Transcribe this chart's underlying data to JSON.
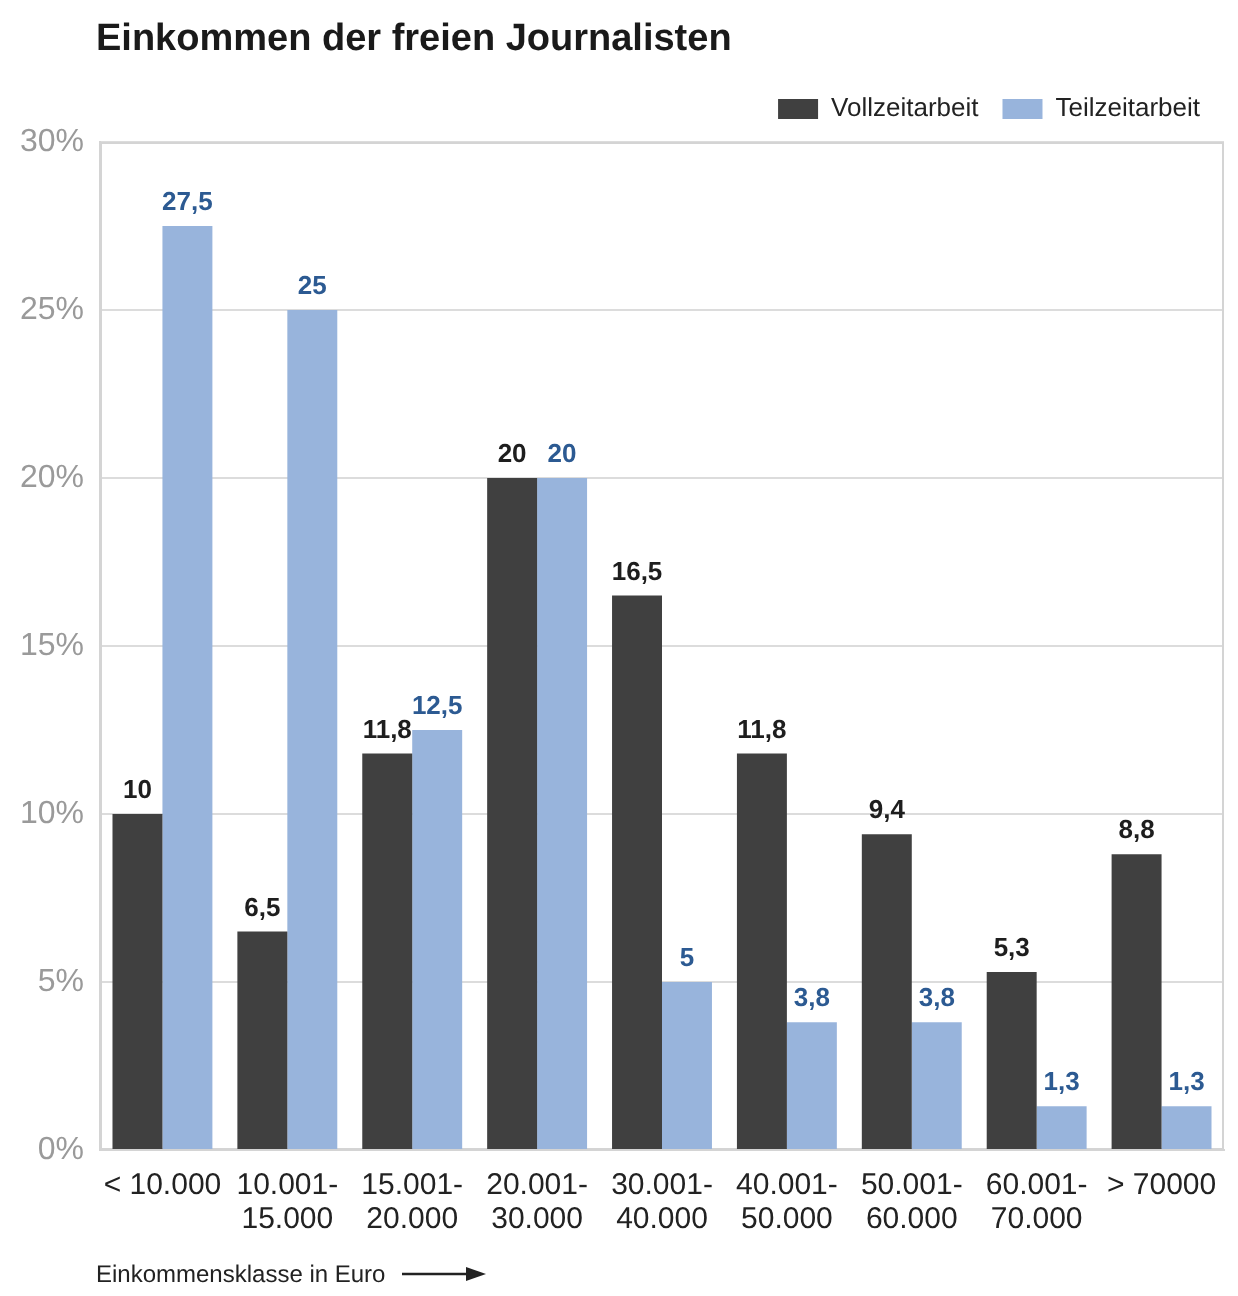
{
  "chart_data": {
    "type": "bar",
    "title": "Einkommen der freien Journalisten",
    "xlabel": "Einkommensklasse in Euro",
    "categories": [
      "< 10.000",
      "10.001-\n15.000",
      "15.001-\n20.000",
      "20.001-\n30.000",
      "30.001-\n40.000",
      "40.001-\n50.000",
      "50.001-\n60.000",
      "60.001-\n70.000",
      "> 70000"
    ],
    "series": [
      {
        "name": "Vollzeitarbeit",
        "color": "#404040",
        "values": [
          10,
          6.5,
          11.8,
          20,
          16.5,
          11.8,
          9.4,
          5.3,
          8.8
        ],
        "value_labels": [
          "10",
          "6,5",
          "11,8",
          "20",
          "16,5",
          "11,8",
          "9,4",
          "5,3",
          "8,8"
        ]
      },
      {
        "name": "Teilzeitarbeit",
        "color": "#98b4dc",
        "values": [
          27.5,
          25,
          12.5,
          20,
          5,
          3.8,
          3.8,
          1.3,
          1.3
        ],
        "value_labels": [
          "27,5",
          "25",
          "12,5",
          "20",
          "5",
          "3,8",
          "3,8",
          "1,3",
          "1,3"
        ]
      }
    ],
    "ylim": [
      0,
      30
    ],
    "yticks": [
      {
        "value": 0,
        "label": "0%"
      },
      {
        "value": 5,
        "label": "5%"
      },
      {
        "value": 10,
        "label": "10%"
      },
      {
        "value": 15,
        "label": "15%"
      },
      {
        "value": 20,
        "label": "20%"
      },
      {
        "value": 25,
        "label": "25%"
      },
      {
        "value": 30,
        "label": "30%"
      }
    ],
    "grid": "y",
    "legend": "top right"
  }
}
